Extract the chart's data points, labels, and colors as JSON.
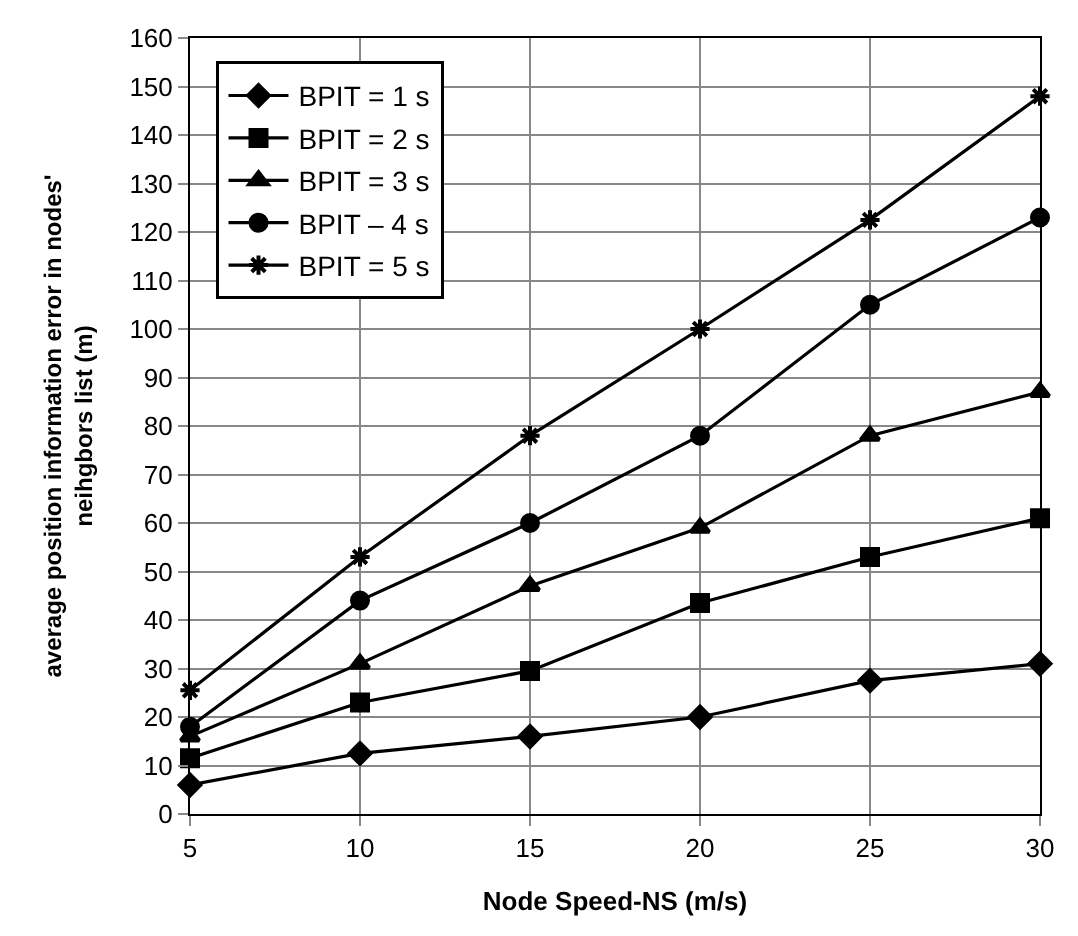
{
  "chart_data": {
    "type": "line",
    "xlabel": "Node Speed-NS (m/s)",
    "ylabel": "average position information error in nodes'\nneihgbors list (m)",
    "x": [
      5,
      10,
      15,
      20,
      25,
      30
    ],
    "series": [
      {
        "name": "BPIT = 1 s",
        "color": "#000000",
        "marker": "diamond",
        "values": [
          6,
          12.5,
          16,
          20,
          27.5,
          31
        ]
      },
      {
        "name": "BPIT = 2 s",
        "color": "#000000",
        "marker": "square",
        "values": [
          11.5,
          23,
          29.5,
          43.5,
          53,
          61
        ]
      },
      {
        "name": "BPIT = 3 s",
        "color": "#000000",
        "marker": "triangle",
        "values": [
          16,
          31,
          47,
          59,
          78,
          87
        ]
      },
      {
        "name": "BPIT – 4 s",
        "color": "#000000",
        "marker": "circle",
        "values": [
          18,
          44,
          60,
          78,
          105,
          123
        ]
      },
      {
        "name": "BPIT = 5 s",
        "color": "#000000",
        "marker": "cross",
        "values": [
          25.5,
          53,
          78,
          100,
          122.5,
          148
        ]
      }
    ],
    "xlim": [
      5,
      30
    ],
    "xticks": [
      5,
      10,
      15,
      20,
      25,
      30
    ],
    "ylim": [
      0,
      160
    ],
    "yticks": [
      0,
      10,
      20,
      30,
      40,
      50,
      60,
      70,
      80,
      90,
      100,
      110,
      120,
      130,
      140,
      150,
      160
    ],
    "grid": true,
    "legend": "top left",
    "line_style": "solid"
  }
}
